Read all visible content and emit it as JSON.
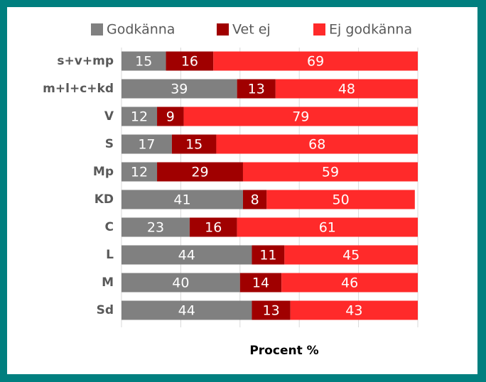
{
  "chart_data": {
    "type": "stacked-bar-horizontal",
    "x_label": "Procent %",
    "categories": [
      "s+v+mp",
      "m+l+c+kd",
      "V",
      "S",
      "Mp",
      "KD",
      "C",
      "L",
      "M",
      "Sd"
    ],
    "series": [
      {
        "name": "Godkänna",
        "color": "#808080",
        "values": [
          15,
          39,
          12,
          17,
          12,
          41,
          23,
          44,
          40,
          44
        ]
      },
      {
        "name": "Vet ej",
        "color": "#a00000",
        "values": [
          16,
          13,
          9,
          15,
          29,
          8,
          16,
          11,
          14,
          13
        ]
      },
      {
        "name": "Ej godkänna",
        "color": "#ff2a2a",
        "values": [
          69,
          48,
          79,
          68,
          59,
          50,
          61,
          45,
          46,
          43
        ]
      }
    ],
    "xlim": [
      0,
      100
    ],
    "xticks": [
      0,
      20,
      40,
      60,
      80,
      100
    ],
    "grid": true,
    "legend": "top"
  }
}
